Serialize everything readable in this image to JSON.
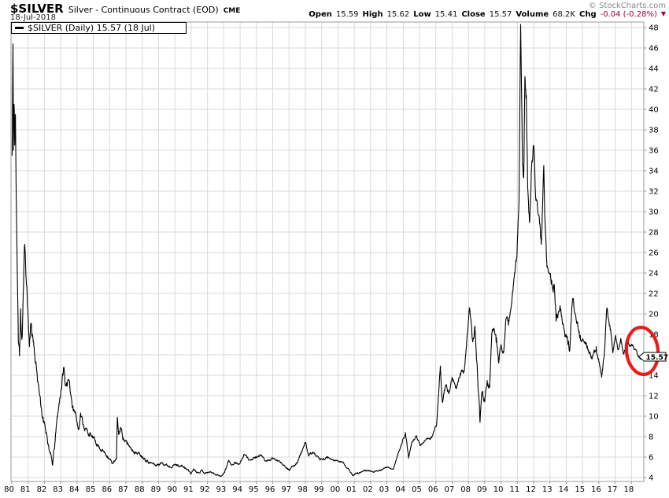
{
  "header": {
    "symbol": "$SILVER",
    "description": "Silver - Continuous Contract (EOD)",
    "exchange": "CME",
    "date": "18-Jul-2018",
    "watermark": "© StockCharts.com",
    "quote": {
      "open_label": "Open",
      "open": "15.59",
      "high_label": "High",
      "high": "15.62",
      "low_label": "Low",
      "low": "15.41",
      "close_label": "Close",
      "close": "15.57",
      "volume_label": "Volume",
      "volume": "68.2K",
      "chg_label": "Chg",
      "chg": "-0.04 (-0.28%)",
      "chg_direction": "down",
      "chg_color": "#a00034"
    }
  },
  "legend": {
    "text": "$SILVER (Daily) 15.57 (18 Jul)"
  },
  "price_tag": {
    "text": "15.57"
  },
  "annotation": {
    "type": "ellipse",
    "color": "#e81010",
    "meaning": "highlight of current price area"
  },
  "chart_data": {
    "type": "line",
    "title": "$SILVER Silver - Continuous Contract (EOD) CME, Daily, 1980 - 18-Jul-2018",
    "xlabel": "",
    "ylabel": "",
    "grid": true,
    "line_color": "#000000",
    "grid_color": "#dadada",
    "frame_color": "#999999",
    "x_axis": {
      "start_year": 1980,
      "end_year": 2018.6,
      "labels": [
        "80",
        "81",
        "82",
        "83",
        "84",
        "85",
        "86",
        "87",
        "88",
        "89",
        "90",
        "91",
        "92",
        "93",
        "94",
        "95",
        "96",
        "97",
        "98",
        "99",
        "00",
        "01",
        "02",
        "03",
        "04",
        "05",
        "06",
        "07",
        "08",
        "09",
        "10",
        "11",
        "12",
        "13",
        "14",
        "15",
        "16",
        "17",
        "18"
      ]
    },
    "y_axis": {
      "min": 4,
      "max": 48,
      "step": 2,
      "labels": [
        "48",
        "46",
        "44",
        "42",
        "40",
        "38",
        "36",
        "34",
        "32",
        "30",
        "28",
        "26",
        "24",
        "22",
        "20",
        "18",
        "16",
        "14",
        "12",
        "10",
        "8",
        "6",
        "4"
      ]
    },
    "series": [
      {
        "name": "$SILVER (Daily)",
        "last_value": 15.57,
        "last_date": "18 Jul 2018",
        "points_format": [
          "year_decimal",
          "price_usd",
          "daily_jitter_usd"
        ],
        "points": [
          [
            1980.02,
            35.5,
            0
          ],
          [
            1980.07,
            46.4,
            0.2
          ],
          [
            1980.1,
            36.0,
            1.2
          ],
          [
            1980.14,
            40.5,
            1.2
          ],
          [
            1980.18,
            36.5,
            1.2
          ],
          [
            1980.22,
            39.5,
            1.0
          ],
          [
            1980.26,
            33.0,
            0.8
          ],
          [
            1980.32,
            26.0,
            0.8
          ],
          [
            1980.4,
            17.2,
            0.9
          ],
          [
            1980.47,
            15.9,
            0.9
          ],
          [
            1980.54,
            20.5,
            0.9
          ],
          [
            1980.62,
            17.5,
            0.9
          ],
          [
            1980.7,
            22.0,
            0.8
          ],
          [
            1980.79,
            26.8,
            0.7
          ],
          [
            1980.88,
            23.5,
            0.7
          ],
          [
            1980.98,
            20.5,
            0.7
          ],
          [
            1981.08,
            16.8,
            0.7
          ],
          [
            1981.18,
            19.0,
            0.6
          ],
          [
            1981.33,
            17.3,
            0.6
          ],
          [
            1981.52,
            14.5,
            0.5
          ],
          [
            1981.72,
            12.0,
            0.5
          ],
          [
            1981.94,
            9.4,
            0.4
          ],
          [
            1982.15,
            8.2,
            0.35
          ],
          [
            1982.32,
            6.6,
            0.3
          ],
          [
            1982.5,
            5.2,
            0.25
          ],
          [
            1982.64,
            7.3,
            0.35
          ],
          [
            1982.82,
            10.3,
            0.45
          ],
          [
            1983.02,
            12.6,
            0.45
          ],
          [
            1983.19,
            14.8,
            0.45
          ],
          [
            1983.28,
            13.0,
            0.4
          ],
          [
            1983.46,
            13.6,
            0.4
          ],
          [
            1983.6,
            12.2,
            0.4
          ],
          [
            1983.75,
            11.0,
            0.35
          ],
          [
            1983.9,
            10.4,
            0.35
          ],
          [
            1984.08,
            8.7,
            0.35
          ],
          [
            1984.22,
            10.3,
            0.35
          ],
          [
            1984.38,
            9.2,
            0.3
          ],
          [
            1984.66,
            8.4,
            0.25
          ],
          [
            1984.85,
            8.1,
            0.25
          ],
          [
            1985.1,
            7.6,
            0.2
          ],
          [
            1985.35,
            7.0,
            0.2
          ],
          [
            1985.6,
            6.6,
            0.18
          ],
          [
            1985.88,
            6.1,
            0.15
          ],
          [
            1986.16,
            5.4,
            0.12
          ],
          [
            1986.32,
            5.6,
            0.12
          ],
          [
            1986.42,
            5.8,
            0.1
          ],
          [
            1986.47,
            9.9,
            0.15
          ],
          [
            1986.55,
            8.2,
            0.3
          ],
          [
            1986.68,
            8.9,
            0.25
          ],
          [
            1986.83,
            7.9,
            0.22
          ],
          [
            1987.06,
            7.3,
            0.2
          ],
          [
            1987.3,
            6.9,
            0.18
          ],
          [
            1987.55,
            6.5,
            0.16
          ],
          [
            1987.85,
            6.3,
            0.15
          ],
          [
            1988.15,
            5.9,
            0.14
          ],
          [
            1988.45,
            5.5,
            0.13
          ],
          [
            1988.85,
            5.2,
            0.12
          ],
          [
            1989.25,
            5.45,
            0.12
          ],
          [
            1989.65,
            5.1,
            0.11
          ],
          [
            1990.05,
            5.25,
            0.11
          ],
          [
            1990.45,
            5.1,
            0.1
          ],
          [
            1990.75,
            4.8,
            0.1
          ],
          [
            1991.0,
            4.4,
            0.09
          ],
          [
            1991.15,
            4.85,
            0.09
          ],
          [
            1991.4,
            4.5,
            0.08
          ],
          [
            1991.65,
            4.7,
            0.08
          ],
          [
            1991.85,
            4.45,
            0.08
          ],
          [
            1992.2,
            4.55,
            0.08
          ],
          [
            1992.55,
            4.3,
            0.07
          ],
          [
            1992.87,
            4.15,
            0.07
          ],
          [
            1993.05,
            4.5,
            0.09
          ],
          [
            1993.29,
            5.65,
            0.11
          ],
          [
            1993.45,
            5.25,
            0.11
          ],
          [
            1993.7,
            5.5,
            0.1
          ],
          [
            1993.95,
            5.3,
            0.1
          ],
          [
            1994.25,
            6.25,
            0.1
          ],
          [
            1994.6,
            5.7,
            0.1
          ],
          [
            1994.95,
            5.9,
            0.1
          ],
          [
            1995.27,
            6.2,
            0.1
          ],
          [
            1995.6,
            5.6,
            0.1
          ],
          [
            1996.0,
            5.85,
            0.09
          ],
          [
            1996.5,
            5.5,
            0.09
          ],
          [
            1997.04,
            4.75,
            0.09
          ],
          [
            1997.5,
            5.5,
            0.11
          ],
          [
            1998.0,
            7.4,
            0.13
          ],
          [
            1998.2,
            6.1,
            0.12
          ],
          [
            1998.45,
            6.5,
            0.11
          ],
          [
            1998.9,
            5.7,
            0.1
          ],
          [
            1999.35,
            5.9,
            0.1
          ],
          [
            1999.85,
            5.65,
            0.09
          ],
          [
            2000.3,
            5.5,
            0.08
          ],
          [
            2000.92,
            4.2,
            0.08
          ],
          [
            2001.2,
            4.5,
            0.08
          ],
          [
            2001.75,
            4.7,
            0.07
          ],
          [
            2002.2,
            4.5,
            0.07
          ],
          [
            2002.79,
            4.9,
            0.07
          ],
          [
            2003.05,
            5.0,
            0.07
          ],
          [
            2003.4,
            4.85,
            0.08
          ],
          [
            2003.75,
            6.6,
            0.1
          ],
          [
            2004.14,
            8.4,
            0.14
          ],
          [
            2004.33,
            5.9,
            0.16
          ],
          [
            2004.6,
            7.6,
            0.14
          ],
          [
            2004.81,
            8.1,
            0.12
          ],
          [
            2005.05,
            7.1,
            0.11
          ],
          [
            2005.3,
            7.6,
            0.1
          ],
          [
            2005.75,
            7.9,
            0.1
          ],
          [
            2006.05,
            9.2,
            0.13
          ],
          [
            2006.28,
            14.9,
            0.2
          ],
          [
            2006.4,
            11.4,
            0.35
          ],
          [
            2006.6,
            13.0,
            0.3
          ],
          [
            2006.8,
            12.2,
            0.25
          ],
          [
            2007.0,
            13.8,
            0.25
          ],
          [
            2007.25,
            12.7,
            0.22
          ],
          [
            2007.5,
            14.2,
            0.2
          ],
          [
            2007.75,
            14.5,
            0.2
          ],
          [
            2008.07,
            20.6,
            0.3
          ],
          [
            2008.25,
            17.5,
            0.45
          ],
          [
            2008.4,
            18.8,
            0.45
          ],
          [
            2008.71,
            9.4,
            0.5
          ],
          [
            2008.85,
            12.2,
            0.45
          ],
          [
            2009.0,
            11.4,
            0.35
          ],
          [
            2009.15,
            13.5,
            0.3
          ],
          [
            2009.3,
            12.8,
            0.3
          ],
          [
            2009.43,
            18.0,
            0.35
          ],
          [
            2009.55,
            18.6,
            0.4
          ],
          [
            2009.7,
            17.2,
            0.4
          ],
          [
            2009.86,
            15.2,
            0.35
          ],
          [
            2010.0,
            17.0,
            0.3
          ],
          [
            2010.15,
            16.2,
            0.3
          ],
          [
            2010.3,
            19.5,
            0.3
          ],
          [
            2010.45,
            18.9,
            0.3
          ],
          [
            2010.6,
            20.5,
            0.3
          ],
          [
            2010.71,
            22.2,
            0.3
          ],
          [
            2010.85,
            24.0,
            0.35
          ],
          [
            2010.97,
            25.5,
            0.4
          ],
          [
            2011.1,
            31.0,
            0.6
          ],
          [
            2011.2,
            48.3,
            0.3
          ],
          [
            2011.32,
            34.5,
            0.9
          ],
          [
            2011.39,
            33.3,
            0.9
          ],
          [
            2011.46,
            43.2,
            0.8
          ],
          [
            2011.55,
            41.4,
            0.9
          ],
          [
            2011.63,
            32.4,
            0.9
          ],
          [
            2011.76,
            29.2,
            0.8
          ],
          [
            2011.87,
            34.3,
            0.8
          ],
          [
            2011.99,
            36.5,
            0.8
          ],
          [
            2012.12,
            31.5,
            0.7
          ],
          [
            2012.23,
            30.6,
            0.6
          ],
          [
            2012.47,
            26.8,
            0.6
          ],
          [
            2012.62,
            34.5,
            0.6
          ],
          [
            2012.7,
            29.0,
            0.8
          ],
          [
            2012.8,
            25.2,
            0.6
          ],
          [
            2012.95,
            24.0,
            0.5
          ],
          [
            2013.1,
            23.3,
            0.5
          ],
          [
            2013.26,
            22.9,
            0.5
          ],
          [
            2013.38,
            19.3,
            0.5
          ],
          [
            2013.62,
            20.8,
            0.45
          ],
          [
            2013.9,
            18.3,
            0.4
          ],
          [
            2014.1,
            17.0,
            0.35
          ],
          [
            2014.21,
            16.4,
            0.35
          ],
          [
            2014.38,
            21.4,
            0.4
          ],
          [
            2014.6,
            19.5,
            0.35
          ],
          [
            2014.86,
            17.9,
            0.3
          ],
          [
            2015.1,
            17.2,
            0.28
          ],
          [
            2015.26,
            16.7,
            0.25
          ],
          [
            2015.58,
            15.6,
            0.25
          ],
          [
            2015.84,
            16.8,
            0.25
          ],
          [
            2016.0,
            15.3,
            0.25
          ],
          [
            2016.17,
            13.8,
            0.22
          ],
          [
            2016.35,
            16.5,
            0.3
          ],
          [
            2016.48,
            20.5,
            0.3
          ],
          [
            2016.7,
            18.4,
            0.28
          ],
          [
            2016.86,
            16.2,
            0.25
          ],
          [
            2017.02,
            17.9,
            0.22
          ],
          [
            2017.18,
            16.5,
            0.2
          ],
          [
            2017.34,
            17.6,
            0.2
          ],
          [
            2017.51,
            16.1,
            0.18
          ],
          [
            2017.7,
            17.3,
            0.18
          ],
          [
            2017.9,
            16.9,
            0.16
          ],
          [
            2018.05,
            16.9,
            0.16
          ],
          [
            2018.23,
            16.5,
            0.15
          ],
          [
            2018.42,
            15.9,
            0.12
          ],
          [
            2018.56,
            15.57,
            0
          ]
        ]
      }
    ]
  }
}
